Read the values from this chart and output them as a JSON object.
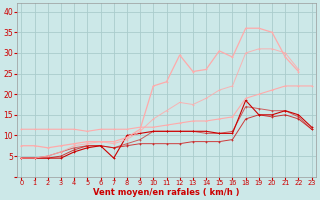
{
  "background_color": "#cce8e8",
  "grid_color": "#aacccc",
  "xlabel": "Vent moyen/en rafales ( km/h )",
  "xlabel_color": "#cc0000",
  "tick_color": "#cc0000",
  "x_positions": [
    0,
    1,
    2,
    3,
    4,
    5,
    6,
    7,
    8,
    9,
    10,
    11,
    12,
    13,
    14,
    15,
    16,
    17,
    18,
    19,
    20,
    21,
    22
  ],
  "x_tick_labels": [
    "0",
    "1",
    "2",
    "3",
    "4",
    "5",
    "6",
    "7",
    "8",
    "9",
    "10",
    "11",
    "12",
    "13",
    "14",
    "15",
    "16",
    "18",
    "19",
    "20",
    "21",
    "22",
    "23"
  ],
  "ylim": [
    0,
    42
  ],
  "xlim": [
    -0.3,
    22.3
  ],
  "yticks": [
    0,
    5,
    10,
    15,
    20,
    25,
    30,
    35,
    40
  ],
  "ytick_labels": [
    "",
    "5",
    "10",
    "15",
    "20",
    "25",
    "30",
    "35",
    "40"
  ],
  "series": [
    {
      "y": [
        4.5,
        4.5,
        4.5,
        4.5,
        6.0,
        7.0,
        7.5,
        4.5,
        10.0,
        10.5,
        11.0,
        11.0,
        11.0,
        11.0,
        11.0,
        10.5,
        10.5,
        18.5,
        15.0,
        15.0,
        16.0,
        15.0,
        12.0
      ],
      "color": "#cc0000",
      "linewidth": 0.8,
      "markersize": 2.0,
      "alpha": 1.0
    },
    {
      "y": [
        4.5,
        4.5,
        4.5,
        5.0,
        6.5,
        7.5,
        7.5,
        7.0,
        7.5,
        8.0,
        8.0,
        8.0,
        8.0,
        8.5,
        8.5,
        8.5,
        9.0,
        14.0,
        15.0,
        14.5,
        15.0,
        14.0,
        11.5
      ],
      "color": "#cc0000",
      "linewidth": 0.7,
      "markersize": 1.8,
      "alpha": 0.75
    },
    {
      "y": [
        4.5,
        4.5,
        5.0,
        6.0,
        7.0,
        7.5,
        7.5,
        7.0,
        8.0,
        9.0,
        11.0,
        11.0,
        11.0,
        11.0,
        10.5,
        10.5,
        11.0,
        17.0,
        16.5,
        16.0,
        16.0,
        14.5,
        11.5
      ],
      "color": "#cc0000",
      "linewidth": 0.7,
      "markersize": 1.8,
      "alpha": 0.6
    },
    {
      "y": [
        11.5,
        11.5,
        11.5,
        11.5,
        11.5,
        11.0,
        11.5,
        11.5,
        11.5,
        12.0,
        12.0,
        12.5,
        13.0,
        13.5,
        13.5,
        14.0,
        14.5,
        19.0,
        20.0,
        21.0,
        22.0,
        22.0,
        22.0
      ],
      "color": "#ffaaaa",
      "linewidth": 0.8,
      "markersize": 1.8,
      "alpha": 1.0
    },
    {
      "y": [
        7.5,
        7.5,
        7.0,
        7.5,
        8.0,
        8.5,
        8.5,
        8.5,
        9.5,
        11.5,
        22.0,
        23.0,
        29.5,
        25.5,
        26.0,
        30.5,
        29.0,
        36.0,
        36.0,
        35.0,
        29.0,
        25.5,
        null
      ],
      "color": "#ffaaaa",
      "linewidth": 0.9,
      "markersize": 2.0,
      "alpha": 1.0
    },
    {
      "y": [
        4.5,
        4.5,
        5.0,
        6.0,
        7.5,
        8.0,
        8.5,
        8.0,
        9.0,
        11.0,
        14.0,
        16.0,
        18.0,
        17.5,
        19.0,
        21.0,
        22.0,
        30.0,
        31.0,
        31.0,
        30.0,
        26.0,
        null
      ],
      "color": "#ffaaaa",
      "linewidth": 0.7,
      "markersize": 1.8,
      "alpha": 0.85
    }
  ]
}
